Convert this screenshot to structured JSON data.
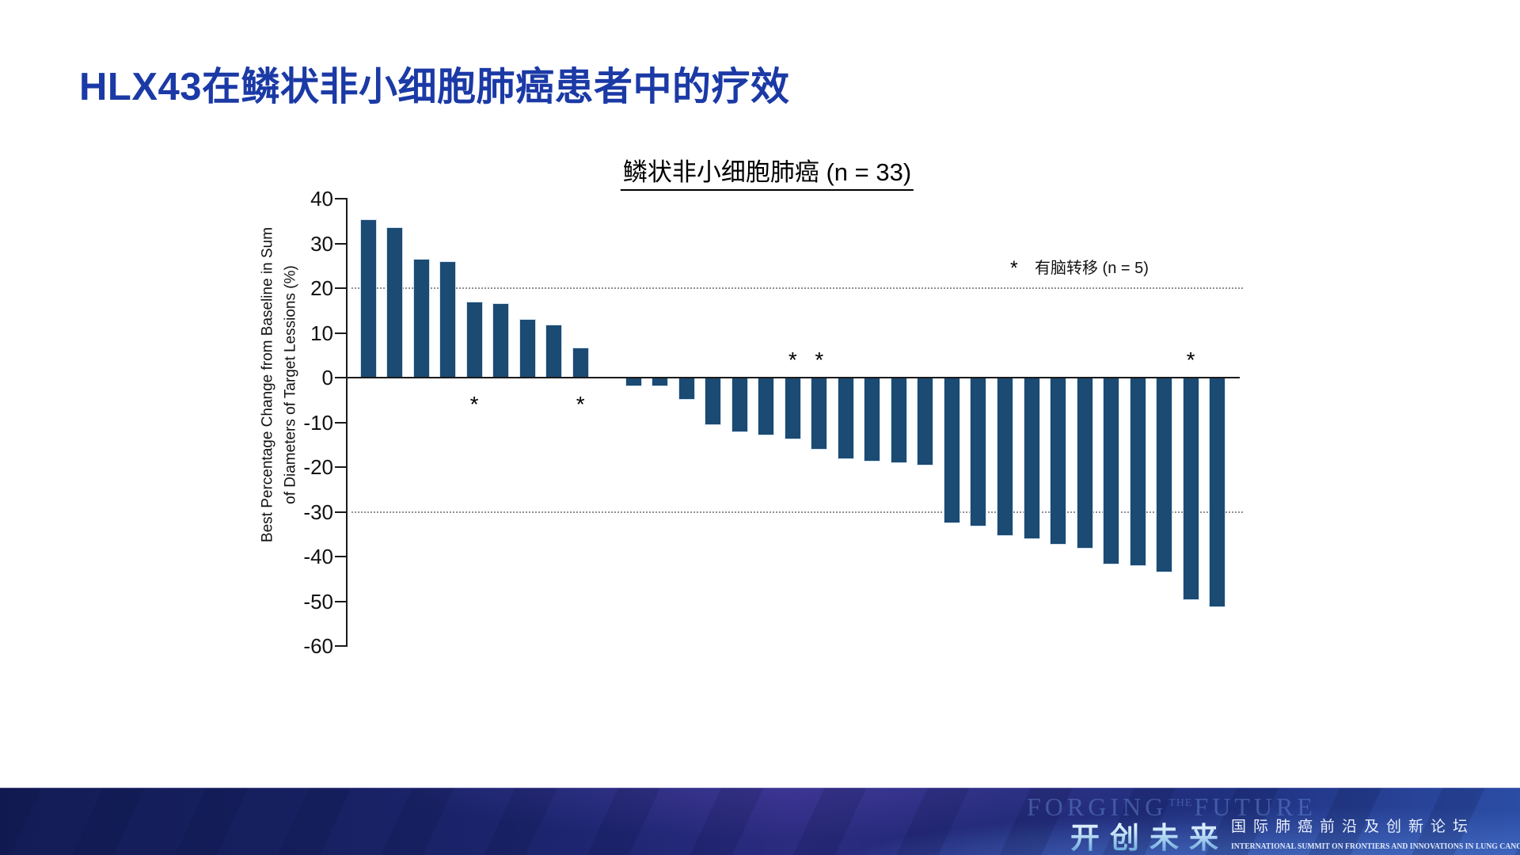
{
  "slide": {
    "title": "HLX43在鳞状非小细胞肺癌患者中的疗效"
  },
  "chart": {
    "title": "鳞状非小细胞肺癌 (n = 33)",
    "ylabel_line1": "Best Percentage Change from Baseline in Sum",
    "ylabel_line2": "of Diameters of Target Lessions (%)",
    "legend_marker": "*",
    "legend_label": "有脑转移 (n = 5)"
  },
  "chart_data": {
    "type": "bar",
    "title": "鳞状非小细胞肺癌 (n = 33)",
    "n": 33,
    "ylabel": "Best Percentage Change from Baseline in Sum of Diameters of Target Lessions (%)",
    "ylim": [
      -60,
      40
    ],
    "yticks": [
      40,
      30,
      20,
      10,
      0,
      -10,
      -20,
      -30,
      -40,
      -50,
      -60
    ],
    "reference_lines": [
      20,
      -30
    ],
    "grid": "dotted horizontal reference lines at +20 and -30",
    "legend": "* 有脑转移 (n = 5)",
    "legend_position": "upper right",
    "values": [
      35.4,
      33.6,
      26.5,
      26.0,
      17.0,
      16.6,
      13.1,
      11.9,
      6.7,
      0.0,
      -1.9,
      -1.9,
      -5.0,
      -10.6,
      -12.2,
      -12.9,
      -13.8,
      -16.1,
      -18.2,
      -18.8,
      -19.1,
      -19.6,
      -32.6,
      -33.3,
      -35.4,
      -36.1,
      -37.3,
      -38.2,
      -41.8,
      -42.1,
      -43.5,
      -49.7,
      -51.3
    ],
    "brain_metastasis_marker_indices": [
      4,
      8,
      16,
      17,
      31
    ]
  },
  "footer": {
    "watermark_1": "FORGING",
    "watermark_2": "THE",
    "watermark_3": "FUTURE",
    "brand_cn": "开创未来",
    "subtitle_cn": "国际肺癌前沿及创新论坛",
    "subtitle_en": "INTERNATIONAL SUMMIT ON FRONTIERS AND INNOVATIONS IN LUNG CANCER"
  },
  "colors": {
    "title_blue": "#1b3aa6",
    "bar_fill": "#1b4a73",
    "bar_border": "#d3e2f0",
    "axis": "#1a1a1a",
    "gridline": "#8f8f8f",
    "footer_navy": "#1d2570"
  }
}
